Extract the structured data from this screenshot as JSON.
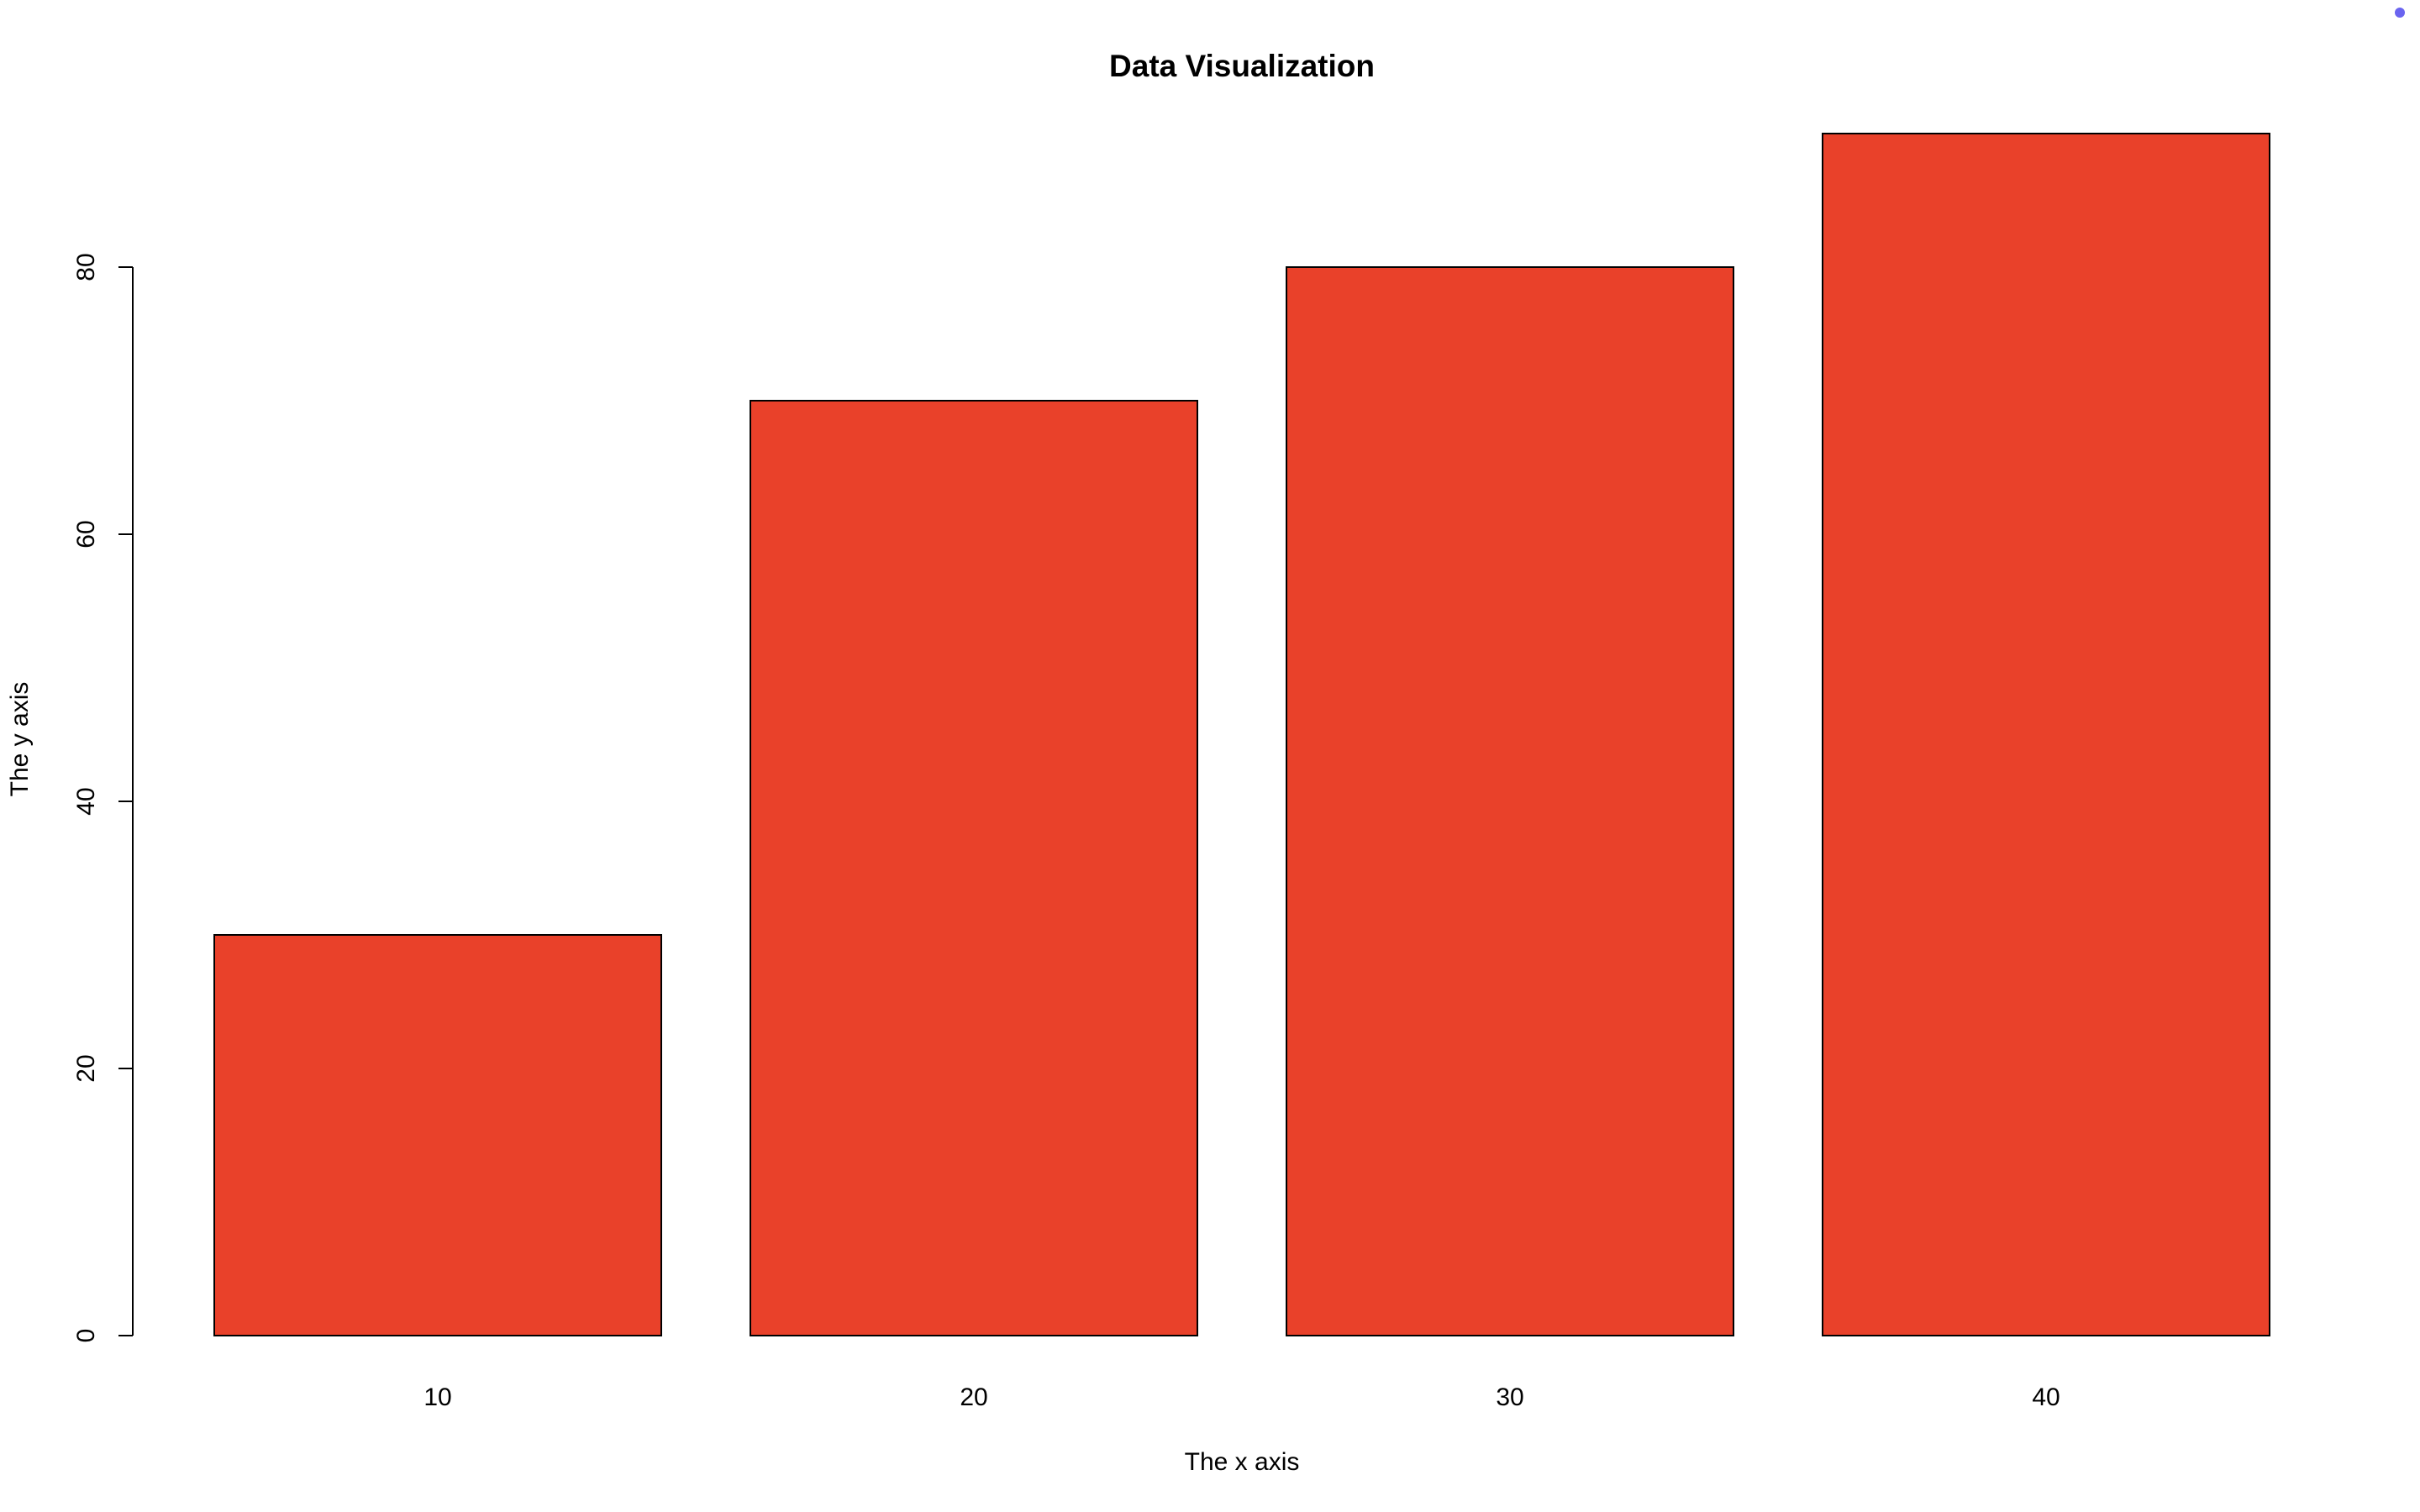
{
  "chart_data": {
    "type": "bar",
    "title": "Data Visualization",
    "xlabel": "The x axis",
    "ylabel": "The y axis",
    "categories": [
      "10",
      "20",
      "30",
      "40"
    ],
    "values": [
      30,
      70,
      80,
      90
    ],
    "ylim": [
      0,
      90
    ],
    "yticks": [
      "0",
      "20",
      "40",
      "60",
      "80"
    ],
    "grid": false,
    "legend": "none",
    "bar_color": "#E9412A",
    "bar_edge_color": "#000000"
  },
  "indicator": {
    "color": "#6A64F0"
  }
}
